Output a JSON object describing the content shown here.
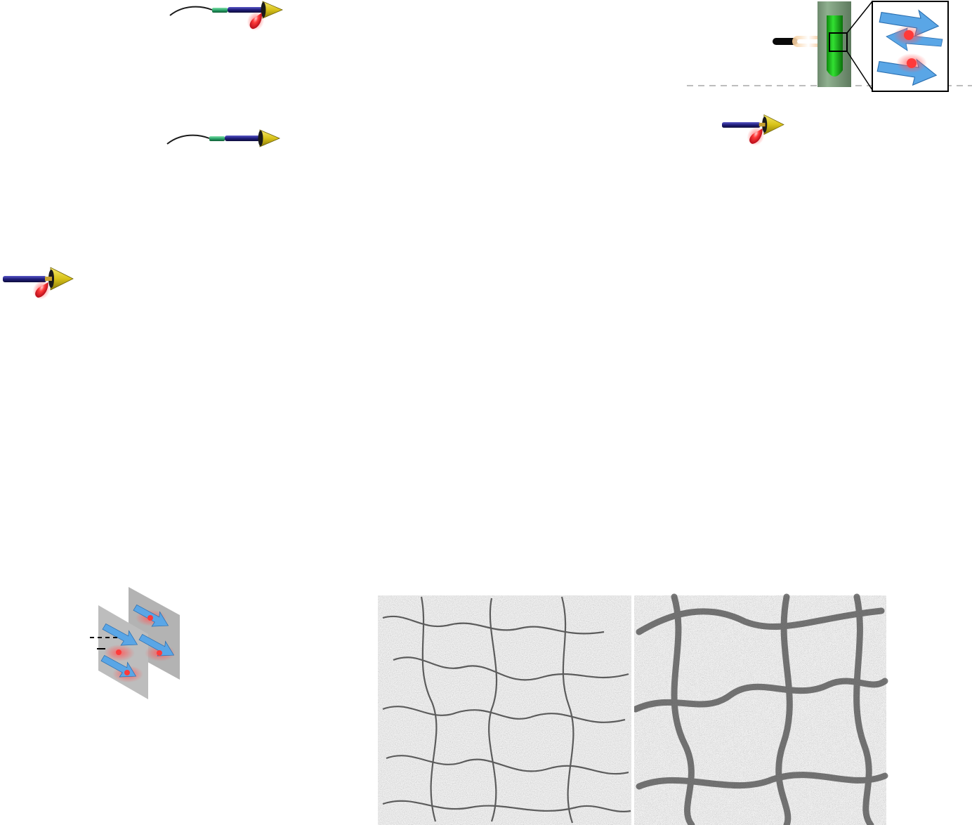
{
  "figure": {
    "background": "#ffffff",
    "colors": {
      "peptide_rod": "#1f1d7a",
      "linker": "#2aa36a",
      "cone_head": "#d8c21a",
      "fluorophore": "#e0101e",
      "arrow_sheet": "#5aa6e6",
      "tube_green": "#1fc21f",
      "divider": "#bdbdbd",
      "micrograph_light": "#a6a6a6",
      "micrograph_dark": "#2e2e2e"
    },
    "icons": {
      "conjugate_with_tail_and_dye": "peptide-dye-conjugate-icon",
      "conjugate_with_tail": "peptide-conjugate-icon",
      "conjugate_short": "short-conjugate-icon",
      "stacked_sheets": "beta-sheet-stack-icon",
      "vial_with_light": "vial-laser-icon",
      "zoom_sheets": "zoomed-sheet-icon"
    }
  }
}
